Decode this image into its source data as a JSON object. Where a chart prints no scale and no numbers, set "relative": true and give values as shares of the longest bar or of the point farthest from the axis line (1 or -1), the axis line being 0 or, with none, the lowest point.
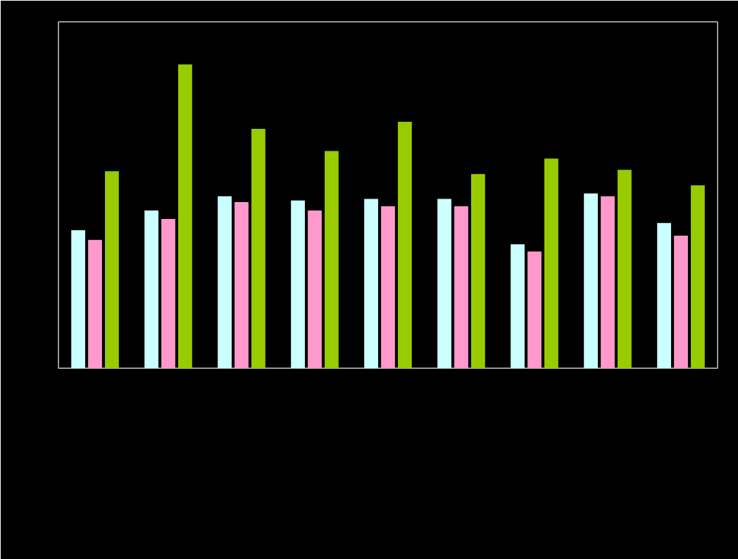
{
  "chart_data": {
    "type": "bar",
    "relative": true,
    "categories": [
      null,
      null,
      null,
      null,
      null,
      null,
      null,
      null,
      null
    ],
    "series": [
      {
        "color": "#ccffff",
        "values": [
          0.454,
          0.519,
          0.566,
          0.552,
          0.557,
          0.557,
          0.408,
          0.575,
          0.478
        ]
      },
      {
        "color": "#ff99cc",
        "values": [
          0.422,
          0.491,
          0.547,
          0.519,
          0.533,
          0.533,
          0.384,
          0.566,
          0.436
        ]
      },
      {
        "color": "#99cc00",
        "values": [
          0.648,
          1,
          0.788,
          0.715,
          0.811,
          0.639,
          0.69,
          0.653,
          0.602
        ]
      }
    ]
  }
}
